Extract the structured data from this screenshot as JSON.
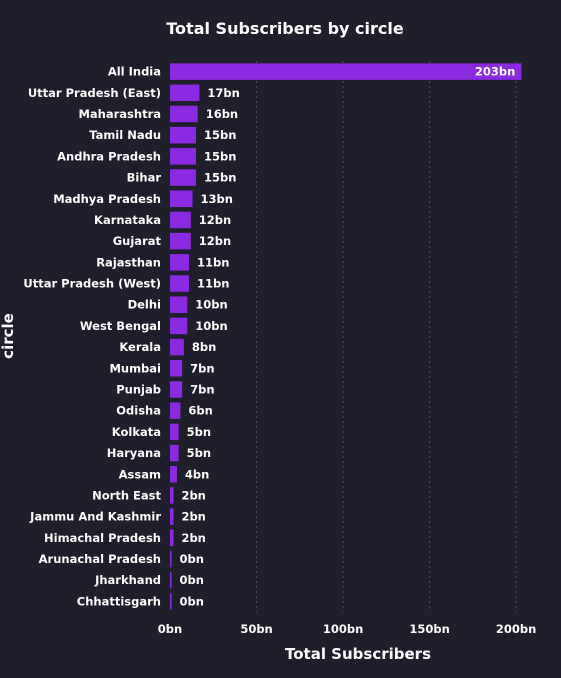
{
  "chart_data": {
    "type": "bar",
    "orientation": "horizontal",
    "title": "Total Subscribers by circle",
    "xlabel": "Total Subscribers",
    "ylabel": "circle",
    "categories": [
      "All India",
      "Uttar Pradesh (East)",
      "Maharashtra",
      "Tamil Nadu",
      "Andhra Pradesh",
      "Bihar",
      "Madhya Pradesh",
      "Karnataka",
      "Gujarat",
      "Rajasthan",
      "Uttar Pradesh (West)",
      "Delhi",
      "West Bengal",
      "Kerala",
      "Mumbai",
      "Punjab",
      "Odisha",
      "Kolkata",
      "Haryana",
      "Assam",
      "North East",
      "Jammu And Kashmir",
      "Himachal Pradesh",
      "Arunachal Pradesh",
      "Jharkhand",
      "Chhattisgarh"
    ],
    "values": [
      203,
      17,
      16,
      15,
      15,
      15,
      13,
      12,
      12,
      11,
      11,
      10,
      10,
      8,
      7,
      7,
      6,
      5,
      5,
      4,
      2,
      2,
      2,
      0.3,
      0.3,
      0.3
    ],
    "data_labels": [
      "203bn",
      "17bn",
      "16bn",
      "15bn",
      "15bn",
      "15bn",
      "13bn",
      "12bn",
      "12bn",
      "11bn",
      "11bn",
      "10bn",
      "10bn",
      "8bn",
      "7bn",
      "7bn",
      "6bn",
      "5bn",
      "5bn",
      "4bn",
      "2bn",
      "2bn",
      "2bn",
      "0bn",
      "0bn",
      "0bn"
    ],
    "xticks": [
      0,
      50,
      100,
      150,
      200
    ],
    "xtick_labels": [
      "0bn",
      "50bn",
      "100bn",
      "150bn",
      "200bn"
    ],
    "xlim": [
      0,
      208
    ],
    "grid": "vertical dotted",
    "legend": "none",
    "colors": {
      "bar": "#8a2be2",
      "background": "#1f1e2b",
      "text": "#ffffff",
      "grid": "#4a4a5c"
    }
  }
}
